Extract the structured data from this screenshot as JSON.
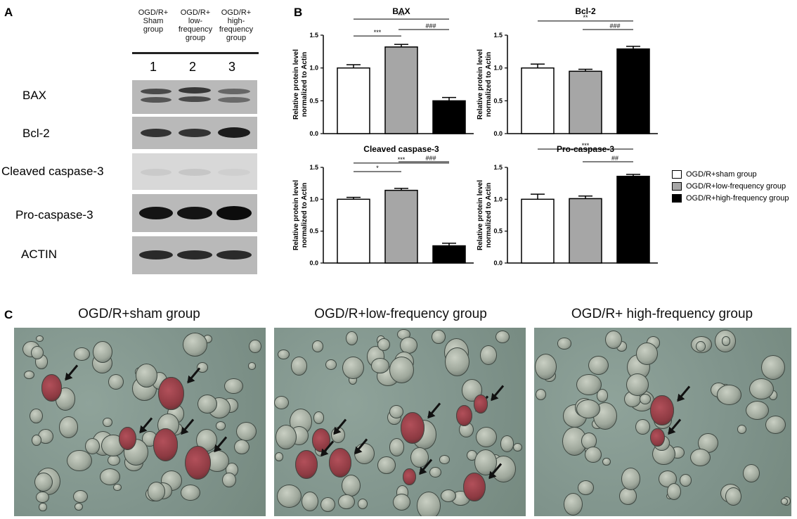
{
  "panels": {
    "a": "A",
    "b": "B",
    "c": "C"
  },
  "blot": {
    "lane_headers": [
      "OGD/R+\nSham\ngroup",
      "OGD/R+\nlow-\nfrequency\ngroup",
      "OGD/R+\nhigh-\nfrequency\ngroup"
    ],
    "lane_numbers": [
      "1",
      "2",
      "3"
    ],
    "rows": [
      "BAX",
      "Bcl-2",
      "Cleaved caspase-3",
      "Pro-caspase-3",
      "ACTIN"
    ]
  },
  "colors": {
    "sham": "#ffffff",
    "low": "#a6a6a6",
    "high": "#000000"
  },
  "legend": [
    "OGD/R+sham group",
    "OGD/R+low-frequency group",
    "OGD/R+high-frequency group"
  ],
  "chart_data": [
    {
      "type": "bar",
      "title": "BAX",
      "ylabel": "Relative protein level normalized to Actin",
      "categories": [
        "OGD/R+sham group",
        "OGD/R+low-frequency group",
        "OGD/R+high-frequency group"
      ],
      "values": [
        1.0,
        1.32,
        0.5
      ],
      "errors": [
        0.05,
        0.04,
        0.05
      ],
      "ylim": [
        0,
        1.5
      ],
      "yticks": [
        "0.0",
        "0.5",
        "1.0",
        "1.5"
      ],
      "annotations": [
        {
          "from": 0,
          "to": 1,
          "label": "***"
        },
        {
          "from": 0,
          "to": 2,
          "label": "***"
        },
        {
          "from": 1,
          "to": 2,
          "label": "###"
        }
      ]
    },
    {
      "type": "bar",
      "title": "Bcl-2",
      "ylabel": "Relative protein level normalized to Actin",
      "categories": [
        "OGD/R+sham group",
        "OGD/R+low-frequency group",
        "OGD/R+high-frequency group"
      ],
      "values": [
        1.0,
        0.95,
        1.29
      ],
      "errors": [
        0.06,
        0.03,
        0.04
      ],
      "ylim": [
        0,
        1.5
      ],
      "yticks": [
        "0.0",
        "0.5",
        "1.0",
        "1.5"
      ],
      "annotations": [
        {
          "from": 0,
          "to": 2,
          "label": "**"
        },
        {
          "from": 1,
          "to": 2,
          "label": "###"
        }
      ]
    },
    {
      "type": "bar",
      "title": "Cleaved caspase-3",
      "ylabel": "Relative protein level normalized to Actin",
      "categories": [
        "OGD/R+sham group",
        "OGD/R+low-frequency group",
        "OGD/R+high-frequency group"
      ],
      "values": [
        1.0,
        1.14,
        0.27
      ],
      "errors": [
        0.03,
        0.03,
        0.04
      ],
      "ylim": [
        0,
        1.5
      ],
      "yticks": [
        "0.0",
        "0.5",
        "1.0",
        "1.5"
      ],
      "annotations": [
        {
          "from": 0,
          "to": 1,
          "label": "*"
        },
        {
          "from": 0,
          "to": 2,
          "label": "***"
        },
        {
          "from": 1,
          "to": 2,
          "label": "###"
        }
      ]
    },
    {
      "type": "bar",
      "title": "Pro-caspase-3",
      "ylabel": "Relative protein level normalized to Actin",
      "categories": [
        "OGD/R+sham group",
        "OGD/R+low-frequency group",
        "OGD/R+high-frequency group"
      ],
      "values": [
        1.0,
        1.01,
        1.36
      ],
      "errors": [
        0.08,
        0.04,
        0.03
      ],
      "ylim": [
        0,
        1.5
      ],
      "yticks": [
        "0.0",
        "0.5",
        "1.0",
        "1.5"
      ],
      "annotations": [
        {
          "from": 0,
          "to": 2,
          "label": "***"
        },
        {
          "from": 1,
          "to": 2,
          "label": "##"
        }
      ]
    }
  ],
  "micrographs": [
    "OGD/R+sham group",
    "OGD/R+low-frequency group",
    "OGD/R+ high-frequency group"
  ]
}
